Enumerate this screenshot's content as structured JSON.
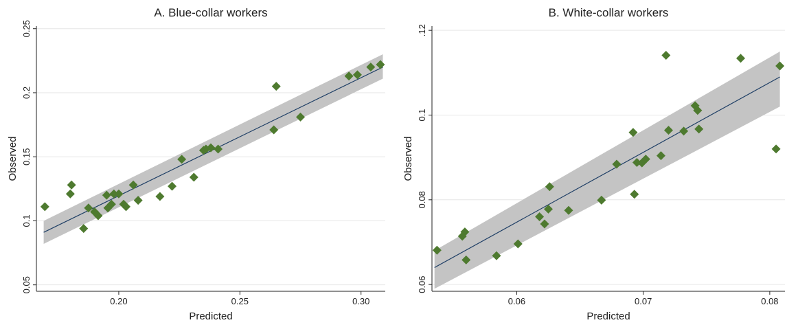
{
  "chart_data": [
    {
      "type": "scatter",
      "title": "A. Blue-collar workers",
      "xlabel": "Predicted",
      "ylabel": "Observed",
      "xlim": [
        0.166,
        0.31
      ],
      "ylim": [
        0.045,
        0.252
      ],
      "xticks": [
        0.2,
        0.25,
        0.3
      ],
      "xtick_labels": [
        "0.20",
        "0.25",
        "0.30"
      ],
      "yticks": [
        0.05,
        0.1,
        0.15,
        0.2,
        0.25
      ],
      "ytick_labels": [
        "0.05",
        "0.1",
        "0.15",
        "0.2",
        "0.25"
      ],
      "grid": "horizontal",
      "fit_line": {
        "x": [
          0.169,
          0.309
        ],
        "y": [
          0.091,
          0.22
        ]
      },
      "confidence_band": {
        "x": [
          0.169,
          0.309
        ],
        "lower": [
          0.082,
          0.211
        ],
        "upper": [
          0.1,
          0.23
        ]
      },
      "colors": {
        "points": "#4e7a2f",
        "line": "#1f3f66",
        "band": "#c4c4c4"
      },
      "points": [
        {
          "x": 0.1695,
          "y": 0.111
        },
        {
          "x": 0.1805,
          "y": 0.128
        },
        {
          "x": 0.18,
          "y": 0.121
        },
        {
          "x": 0.1855,
          "y": 0.094
        },
        {
          "x": 0.1875,
          "y": 0.11
        },
        {
          "x": 0.19,
          "y": 0.107
        },
        {
          "x": 0.1915,
          "y": 0.104
        },
        {
          "x": 0.195,
          "y": 0.12
        },
        {
          "x": 0.1955,
          "y": 0.11
        },
        {
          "x": 0.197,
          "y": 0.113
        },
        {
          "x": 0.198,
          "y": 0.121
        },
        {
          "x": 0.2,
          "y": 0.121
        },
        {
          "x": 0.202,
          "y": 0.113
        },
        {
          "x": 0.203,
          "y": 0.111
        },
        {
          "x": 0.206,
          "y": 0.128
        },
        {
          "x": 0.208,
          "y": 0.116
        },
        {
          "x": 0.217,
          "y": 0.119
        },
        {
          "x": 0.222,
          "y": 0.127
        },
        {
          "x": 0.226,
          "y": 0.148
        },
        {
          "x": 0.231,
          "y": 0.134
        },
        {
          "x": 0.235,
          "y": 0.155
        },
        {
          "x": 0.236,
          "y": 0.156
        },
        {
          "x": 0.238,
          "y": 0.157
        },
        {
          "x": 0.241,
          "y": 0.156
        },
        {
          "x": 0.264,
          "y": 0.171
        },
        {
          "x": 0.265,
          "y": 0.205
        },
        {
          "x": 0.275,
          "y": 0.181
        },
        {
          "x": 0.295,
          "y": 0.213
        },
        {
          "x": 0.2985,
          "y": 0.214
        },
        {
          "x": 0.304,
          "y": 0.22
        },
        {
          "x": 0.308,
          "y": 0.222
        }
      ]
    },
    {
      "type": "scatter",
      "title": "B. White-collar workers",
      "xlabel": "Predicted",
      "ylabel": "Observed",
      "xlim": [
        0.0533,
        0.0812
      ],
      "ylim": [
        0.0584,
        0.121
      ],
      "xticks": [
        0.06,
        0.07,
        0.08
      ],
      "xtick_labels": [
        "0.06",
        "0.07",
        "0.08"
      ],
      "yticks": [
        0.06,
        0.08,
        0.1,
        0.12
      ],
      "ytick_labels": [
        "0.06",
        "0.08",
        "0.1",
        ".12"
      ],
      "grid": "horizontal",
      "fit_line": {
        "x": [
          0.0535,
          0.0808
        ],
        "y": [
          0.064,
          0.109
        ]
      },
      "confidence_band": {
        "x": [
          0.0535,
          0.0808
        ],
        "lower": [
          0.059,
          0.102
        ],
        "upper": [
          0.068,
          0.115
        ]
      },
      "colors": {
        "points": "#4e7a2f",
        "line": "#1f3f66",
        "band": "#c4c4c4"
      },
      "points": [
        {
          "x": 0.0537,
          "y": 0.0681
        },
        {
          "x": 0.0557,
          "y": 0.0714
        },
        {
          "x": 0.0559,
          "y": 0.0724
        },
        {
          "x": 0.056,
          "y": 0.0658
        },
        {
          "x": 0.0584,
          "y": 0.0668
        },
        {
          "x": 0.0601,
          "y": 0.0696
        },
        {
          "x": 0.0618,
          "y": 0.076
        },
        {
          "x": 0.0622,
          "y": 0.0743
        },
        {
          "x": 0.0625,
          "y": 0.0778
        },
        {
          "x": 0.0626,
          "y": 0.0831
        },
        {
          "x": 0.0641,
          "y": 0.0775
        },
        {
          "x": 0.0667,
          "y": 0.0799
        },
        {
          "x": 0.0679,
          "y": 0.0884
        },
        {
          "x": 0.0692,
          "y": 0.0959
        },
        {
          "x": 0.0693,
          "y": 0.0813
        },
        {
          "x": 0.0695,
          "y": 0.0888
        },
        {
          "x": 0.0699,
          "y": 0.0887
        },
        {
          "x": 0.0702,
          "y": 0.0896
        },
        {
          "x": 0.0714,
          "y": 0.0904
        },
        {
          "x": 0.0718,
          "y": 0.1141
        },
        {
          "x": 0.072,
          "y": 0.0964
        },
        {
          "x": 0.0732,
          "y": 0.0962
        },
        {
          "x": 0.0741,
          "y": 0.1022
        },
        {
          "x": 0.0743,
          "y": 0.1011
        },
        {
          "x": 0.0744,
          "y": 0.0967
        },
        {
          "x": 0.0777,
          "y": 0.1134
        },
        {
          "x": 0.0805,
          "y": 0.092
        },
        {
          "x": 0.0808,
          "y": 0.1116
        }
      ]
    }
  ]
}
